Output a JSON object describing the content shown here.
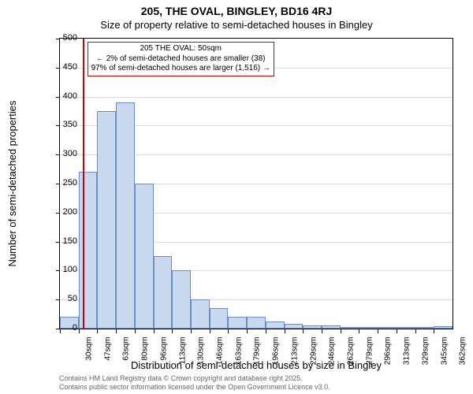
{
  "title_line1": "205, THE OVAL, BINGLEY, BD16 4RJ",
  "title_line2": "Size of property relative to semi-detached houses in Bingley",
  "ylabel": "Number of semi-detached properties",
  "xlabel": "Distribution of semi-detached houses by size in Bingley",
  "footer_line1": "Contains HM Land Registry data © Crown copyright and database right 2025.",
  "footer_line2": "Contains public sector information licensed under the Open Government Licence v3.0.",
  "chart": {
    "type": "histogram",
    "x_start": 30,
    "bin_width_sqm": 16.6,
    "n_bins": 21,
    "xtick_labels": [
      "30sqm",
      "47sqm",
      "63sqm",
      "80sqm",
      "96sqm",
      "113sqm",
      "130sqm",
      "146sqm",
      "163sqm",
      "179sqm",
      "196sqm",
      "213sqm",
      "229sqm",
      "246sqm",
      "262sqm",
      "279sqm",
      "296sqm",
      "313sqm",
      "329sqm",
      "345sqm",
      "362sqm"
    ],
    "values": [
      20,
      270,
      375,
      390,
      250,
      125,
      100,
      50,
      35,
      20,
      20,
      12,
      8,
      6,
      5,
      3,
      0,
      0,
      0,
      0,
      4
    ],
    "bar_fill": "#c9d9f0",
    "bar_stroke": "#6b8bc4",
    "ylim": [
      0,
      500
    ],
    "ytick_step": 50,
    "grid_color": "#dddddd",
    "plot_border": "#000000",
    "background": "#ffffff",
    "marker": {
      "x_sqm_position": 50,
      "color": "#cc0000",
      "line1": "205 THE OVAL: 50sqm",
      "line2": "← 2% of semi-detached houses are smaller (38)",
      "line3": "97% of semi-detached houses are larger (1,516) →",
      "box_border": "#cc0000",
      "box_bg": "#ffffff"
    }
  }
}
